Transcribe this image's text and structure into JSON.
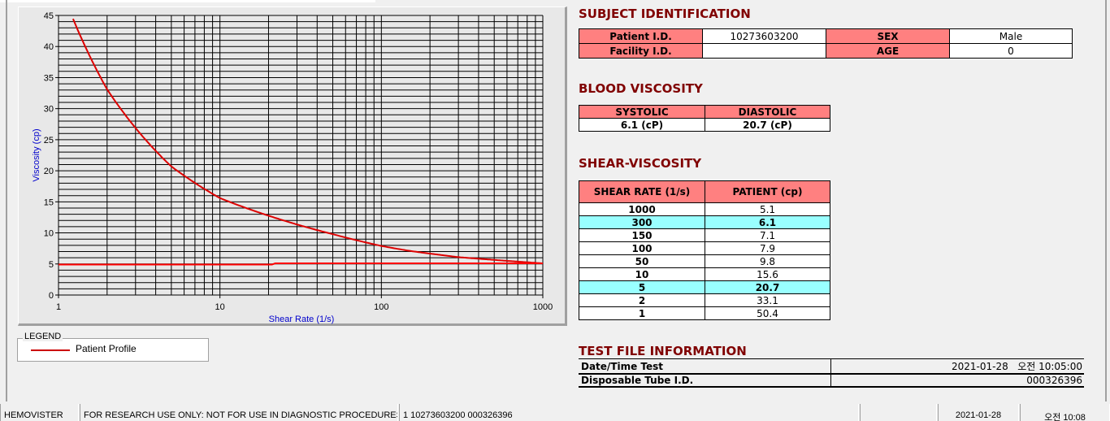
{
  "chart_data": {
    "type": "line",
    "xlabel": "Shear Rate (1/s)",
    "ylabel": "Viscosity (cp)",
    "xscale": "log",
    "xlim": [
      1,
      1000
    ],
    "ylim": [
      0,
      45
    ],
    "xticks": [
      "1",
      "10",
      "100",
      "1000"
    ],
    "yticks": [
      "0",
      "5",
      "10",
      "15",
      "20",
      "25",
      "30",
      "35",
      "40",
      "45"
    ],
    "grid": true,
    "series": [
      {
        "name": "Patient Profile",
        "color": "#dd0000",
        "x": [
          1,
          2,
          5,
          10,
          50,
          100,
          150,
          300,
          1000
        ],
        "y": [
          50.4,
          33.1,
          20.7,
          15.6,
          9.8,
          7.9,
          7.1,
          6.1,
          5.1
        ]
      },
      {
        "color": "#ff0000",
        "x": [
          1,
          21,
          22,
          1000
        ],
        "y": [
          4.9,
          4.9,
          5.1,
          5.1
        ]
      }
    ]
  },
  "legend": {
    "title": "LEGEND",
    "label": "Patient Profile"
  },
  "subject": {
    "title": "SUBJECT IDENTIFICATION",
    "patient_id_label": "Patient I.D.",
    "patient_id": "10273603200",
    "sex_label": "SEX",
    "sex": "Male",
    "facility_label": "Facility I.D.",
    "facility": "",
    "age_label": "AGE",
    "age": "0"
  },
  "blood": {
    "title": "BLOOD VISCOSITY",
    "systolic_label": "SYSTOLIC",
    "diastolic_label": "DIASTOLIC",
    "systolic": "6.1 (cP)",
    "diastolic": "20.7 (cP)"
  },
  "shear": {
    "title": "SHEAR-VISCOSITY",
    "col1": "SHEAR RATE (1/s)",
    "col2": "PATIENT (cp)",
    "rows": [
      {
        "rate": "1000",
        "value": "5.1",
        "highlight": false
      },
      {
        "rate": "300",
        "value": "6.1",
        "highlight": true
      },
      {
        "rate": "150",
        "value": "7.1",
        "highlight": false
      },
      {
        "rate": "100",
        "value": "7.9",
        "highlight": false
      },
      {
        "rate": "50",
        "value": "9.8",
        "highlight": false
      },
      {
        "rate": "10",
        "value": "15.6",
        "highlight": false
      },
      {
        "rate": "5",
        "value": "20.7",
        "highlight": true
      },
      {
        "rate": "2",
        "value": "33.1",
        "highlight": false
      },
      {
        "rate": "1",
        "value": "50.4",
        "highlight": false
      }
    ]
  },
  "file": {
    "title": "TEST FILE INFORMATION",
    "date_label": "Date/Time Test",
    "date": "2021-01-28   오전 10:05:00",
    "tube_label": "Disposable Tube I.D.",
    "tube": "000326396"
  },
  "status": {
    "app": "HEMOVISTER",
    "notice": "FOR RESEARCH USE ONLY: NOT FOR USE IN DIAGNOSTIC PROCEDURES",
    "ids": "1  10273603200  000326396",
    "empty": "",
    "date": "2021-01-28",
    "time": "오전 10:08"
  }
}
